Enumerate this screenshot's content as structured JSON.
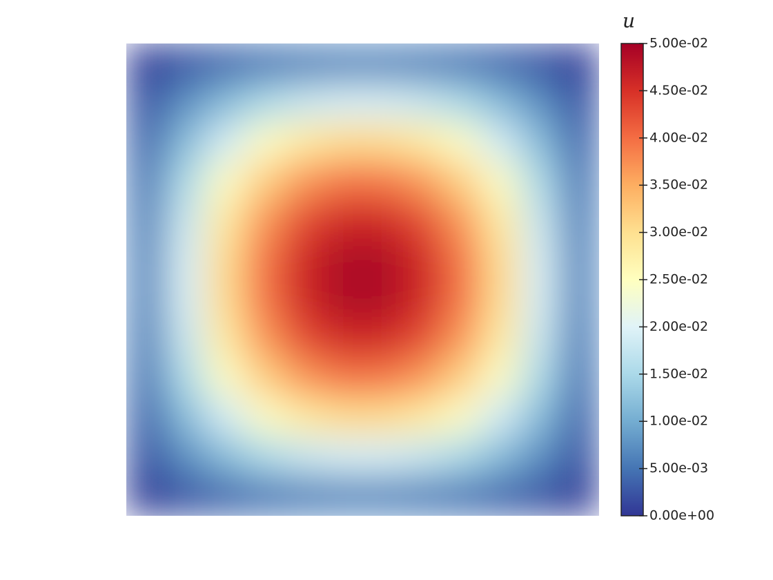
{
  "chart_data": {
    "type": "heatmap",
    "colorbar_title": "u",
    "z": [
      [
        0.00085,
        0.0025,
        0.004,
        0.0052,
        0.006,
        0.0065,
        0.0065,
        0.006,
        0.0052,
        0.004,
        0.0025,
        0.00085
      ],
      [
        0.0025,
        0.0073,
        0.0116,
        0.0152,
        0.0177,
        0.019,
        0.019,
        0.0177,
        0.0152,
        0.0116,
        0.0073,
        0.0025
      ],
      [
        0.004,
        0.0116,
        0.0185,
        0.0242,
        0.0281,
        0.0302,
        0.0302,
        0.0281,
        0.0242,
        0.0185,
        0.0116,
        0.004
      ],
      [
        0.0052,
        0.0152,
        0.0242,
        0.0315,
        0.0367,
        0.0393,
        0.0393,
        0.0367,
        0.0315,
        0.0242,
        0.0152,
        0.0052
      ],
      [
        0.006,
        0.0177,
        0.0281,
        0.0367,
        0.0427,
        0.0458,
        0.0458,
        0.0427,
        0.0367,
        0.0281,
        0.0177,
        0.006
      ],
      [
        0.0065,
        0.019,
        0.0302,
        0.0393,
        0.0458,
        0.0491,
        0.0491,
        0.0458,
        0.0393,
        0.0302,
        0.019,
        0.0065
      ],
      [
        0.0065,
        0.019,
        0.0302,
        0.0393,
        0.0458,
        0.0491,
        0.0491,
        0.0458,
        0.0393,
        0.0302,
        0.019,
        0.0065
      ],
      [
        0.006,
        0.0177,
        0.0281,
        0.0367,
        0.0427,
        0.0458,
        0.0458,
        0.0427,
        0.0367,
        0.0281,
        0.0177,
        0.006
      ],
      [
        0.0052,
        0.0152,
        0.0242,
        0.0315,
        0.0367,
        0.0393,
        0.0393,
        0.0367,
        0.0315,
        0.0242,
        0.0152,
        0.0052
      ],
      [
        0.004,
        0.0116,
        0.0185,
        0.0242,
        0.0281,
        0.0302,
        0.0302,
        0.0281,
        0.0242,
        0.0185,
        0.0116,
        0.004
      ],
      [
        0.0025,
        0.0073,
        0.0116,
        0.0152,
        0.0177,
        0.019,
        0.019,
        0.0177,
        0.0152,
        0.0116,
        0.0073,
        0.0025
      ],
      [
        0.00085,
        0.0025,
        0.004,
        0.0052,
        0.006,
        0.0065,
        0.0065,
        0.006,
        0.0052,
        0.004,
        0.0025,
        0.00085
      ]
    ],
    "zlim": [
      0,
      0.05
    ],
    "zticks": [
      {
        "value": 0,
        "label": "0.00e+00"
      },
      {
        "value": 0.005,
        "label": "5.00e-03"
      },
      {
        "value": 0.01,
        "label": "1.00e-02"
      },
      {
        "value": 0.015,
        "label": "1.50e-02"
      },
      {
        "value": 0.02,
        "label": "2.00e-02"
      },
      {
        "value": 0.025,
        "label": "2.50e-02"
      },
      {
        "value": 0.03,
        "label": "3.00e-02"
      },
      {
        "value": 0.035,
        "label": "3.50e-02"
      },
      {
        "value": 0.04,
        "label": "4.00e-02"
      },
      {
        "value": 0.045,
        "label": "4.50e-02"
      },
      {
        "value": 0.05,
        "label": "5.00e-02"
      }
    ],
    "colormap": [
      "#313695",
      "#4575b4",
      "#74add1",
      "#abd9e9",
      "#e0f3f8",
      "#ffffbf",
      "#fee090",
      "#fdae61",
      "#f46d43",
      "#d73027",
      "#a50026"
    ]
  }
}
